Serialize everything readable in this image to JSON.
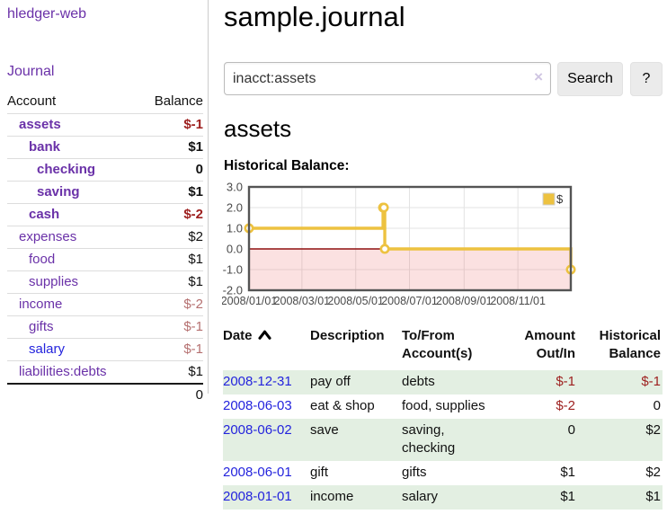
{
  "colors": {
    "link_purple": "#6a31a8",
    "link_blue": "#2424dd",
    "neg_strong": "#9d1f1e",
    "neg_muted": "#b57070",
    "row_green": "#e3efe2",
    "chart_gold": "#edc240",
    "chart_zero_line": "#8f1010",
    "chart_negative_region": "rgba(235,90,90,0.18)",
    "chart_frame": "#545454",
    "chart_grid": "#e3e3e3"
  },
  "sidebar": {
    "app_title": "hledger-web",
    "nav": [
      {
        "label": "Journal"
      }
    ],
    "accounts_table": {
      "headers": {
        "account": "Account",
        "balance": "Balance"
      },
      "rows": [
        {
          "name": "assets",
          "indent": 1,
          "bold": true,
          "balance": "$-1",
          "balance_style": "negstrong"
        },
        {
          "name": "bank",
          "indent": 2,
          "bold": true,
          "balance": "$1",
          "balance_style": "pos"
        },
        {
          "name": "checking",
          "indent": 3,
          "bold": true,
          "balance": "0",
          "balance_style": "pos"
        },
        {
          "name": "saving",
          "indent": 3,
          "bold": true,
          "balance": "$1",
          "balance_style": "pos"
        },
        {
          "name": "cash",
          "indent": 2,
          "bold": true,
          "balance": "$-2",
          "balance_style": "negstrong"
        },
        {
          "name": "expenses",
          "indent": 1,
          "bold": false,
          "balance": "$2",
          "balance_style": "pos"
        },
        {
          "name": "food",
          "indent": 2,
          "bold": false,
          "balance": "$1",
          "balance_style": "pos"
        },
        {
          "name": "supplies",
          "indent": 2,
          "bold": false,
          "balance": "$1",
          "balance_style": "pos"
        },
        {
          "name": "income",
          "indent": 1,
          "bold": false,
          "balance": "$-2",
          "balance_style": "negmuted"
        },
        {
          "name": "gifts",
          "indent": 2,
          "bold": false,
          "balance": "$-1",
          "balance_style": "negmuted"
        },
        {
          "name": "salary",
          "indent": 2,
          "bold": false,
          "link_color": "blue",
          "balance": "$-1",
          "balance_style": "negmuted"
        },
        {
          "name": "liabilities:debts",
          "indent": 1,
          "bold": false,
          "balance": "$1",
          "balance_style": "pos"
        }
      ],
      "total": "0"
    }
  },
  "header": {
    "title": "sample.journal"
  },
  "search": {
    "value": "inacct:assets",
    "clear_icon": "×",
    "button_label": "Search",
    "help_label": "?"
  },
  "account_page": {
    "heading": "assets",
    "chart_title": "Historical Balance:"
  },
  "chart_data": {
    "type": "line",
    "title": "Historical Balance:",
    "step": true,
    "xlim": [
      "2008-01-01",
      "2008-12-31"
    ],
    "ylim": [
      -2,
      3
    ],
    "x_ticks": [
      {
        "date": "2008-01-01",
        "label": "2008/01/01"
      },
      {
        "date": "2008-03-01",
        "label": "2008/03/01"
      },
      {
        "date": "2008-05-01",
        "label": "2008/05/01"
      },
      {
        "date": "2008-07-01",
        "label": "2008/07/01"
      },
      {
        "date": "2008-09-01",
        "label": "2008/09/01"
      },
      {
        "date": "2008-11-01",
        "label": "2008/11/01"
      }
    ],
    "y_ticks": [
      3.0,
      2.0,
      1.0,
      0.0,
      -1.0,
      -2.0
    ],
    "series": [
      {
        "name": "$",
        "color": "#edc240",
        "points": [
          [
            "2008-01-01",
            1
          ],
          [
            "2008-06-01",
            2
          ],
          [
            "2008-06-02",
            2
          ],
          [
            "2008-06-03",
            0
          ],
          [
            "2008-12-31",
            -1
          ]
        ]
      }
    ],
    "legend_position": "top-right",
    "grid": true,
    "negative_region": true
  },
  "register_table": {
    "headers": {
      "date": "Date",
      "sort_icon": "chevron-up",
      "description": "Description",
      "tofrom": "To/From Account(s)",
      "amount": "Amount Out/In",
      "balance": "Historical Balance"
    },
    "rows": [
      {
        "date": "2008-12-31",
        "description": "pay off",
        "accounts": "debts",
        "amount": "$-1",
        "amount_neg": true,
        "balance": "$-1",
        "balance_neg": true,
        "shaded": true
      },
      {
        "date": "2008-06-03",
        "description": "eat & shop",
        "accounts": "food, supplies",
        "amount": "$-2",
        "amount_neg": true,
        "balance": "0",
        "balance_neg": false,
        "shaded": false
      },
      {
        "date": "2008-06-02",
        "description": "save",
        "accounts": "saving, checking",
        "amount": "0",
        "amount_neg": false,
        "balance": "$2",
        "balance_neg": false,
        "shaded": true
      },
      {
        "date": "2008-06-01",
        "description": "gift",
        "accounts": "gifts",
        "amount": "$1",
        "amount_neg": false,
        "balance": "$2",
        "balance_neg": false,
        "shaded": false
      },
      {
        "date": "2008-01-01",
        "description": "income",
        "accounts": "salary",
        "amount": "$1",
        "amount_neg": false,
        "balance": "$1",
        "balance_neg": false,
        "shaded": true
      }
    ]
  }
}
